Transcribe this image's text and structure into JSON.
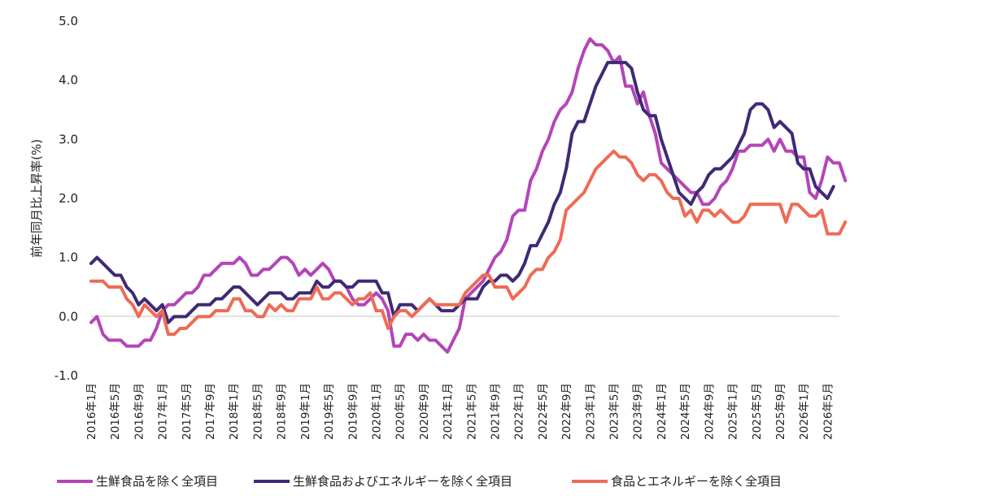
{
  "chart_data": {
    "type": "line",
    "title": "",
    "xlabel": "",
    "ylabel": "前年同月比上昇率(%)",
    "ylim": [
      -1.0,
      5.0
    ],
    "y_ticks": [
      -1.0,
      0.0,
      1.0,
      2.0,
      3.0,
      4.0,
      5.0
    ],
    "y_tick_labels": [
      "-1.0",
      "0.0",
      "1.0",
      "2.0",
      "3.0",
      "4.0",
      "5.0"
    ],
    "x_start": "2016-01",
    "x_end": "2026-07",
    "x_tick_labels": [
      "2016年1月",
      "2016年5月",
      "2016年9月",
      "2017年1月",
      "2017年5月",
      "2017年9月",
      "2018年1月",
      "2018年5月",
      "2018年9月",
      "2019年1月",
      "2019年5月",
      "2019年9月",
      "2020年1月",
      "2020年5月",
      "2020年9月",
      "2021年1月",
      "2021年5月",
      "2021年9月",
      "2022年1月",
      "2022年5月",
      "2022年9月",
      "2023年1月",
      "2023年5月",
      "2023年9月",
      "2024年1月",
      "2024年5月",
      "2024年9月",
      "2025年1月",
      "2025年5月",
      "2025年9月",
      "2026年1月",
      "2026年5月"
    ],
    "grid": false,
    "legend_position": "bottom",
    "series": [
      {
        "name": "生鮮食品を除く全項目",
        "color": "#B445B8",
        "values": [
          -0.1,
          0.0,
          -0.3,
          -0.4,
          -0.4,
          -0.4,
          -0.5,
          -0.5,
          -0.5,
          -0.4,
          -0.4,
          -0.2,
          0.1,
          0.2,
          0.2,
          0.3,
          0.4,
          0.4,
          0.5,
          0.7,
          0.7,
          0.8,
          0.9,
          0.9,
          0.9,
          1.0,
          0.9,
          0.7,
          0.7,
          0.8,
          0.8,
          0.9,
          1.0,
          1.0,
          0.9,
          0.7,
          0.8,
          0.7,
          0.8,
          0.9,
          0.8,
          0.6,
          0.6,
          0.5,
          0.3,
          0.2,
          0.2,
          0.3,
          0.4,
          0.3,
          0.1,
          -0.5,
          -0.5,
          -0.3,
          -0.3,
          -0.4,
          -0.3,
          -0.4,
          -0.4,
          -0.5,
          -0.6,
          -0.4,
          -0.2,
          0.3,
          0.4,
          0.5,
          0.6,
          0.8,
          1.0,
          1.1,
          1.3,
          1.7,
          1.8,
          1.8,
          2.3,
          2.5,
          2.8,
          3.0,
          3.3,
          3.5,
          3.6,
          3.8,
          4.2,
          4.5,
          4.7,
          4.6,
          4.6,
          4.5,
          4.3,
          4.4,
          3.9,
          3.9,
          3.6,
          3.8,
          3.4,
          3.1,
          2.6,
          2.5,
          2.4,
          2.3,
          2.2,
          2.1,
          2.1,
          1.9,
          1.9,
          2.0,
          2.2,
          2.3,
          2.5,
          2.8,
          2.8,
          2.9,
          2.9,
          2.9,
          3.0,
          2.8,
          3.0,
          2.8,
          2.8,
          2.7,
          2.7,
          2.1,
          2.0,
          2.3,
          2.7,
          2.6,
          2.6,
          2.3
        ]
      },
      {
        "name": "生鮮食品およびエネルギーを除く全項目",
        "color": "#3F2A75",
        "values": [
          0.9,
          1.0,
          0.9,
          0.8,
          0.7,
          0.7,
          0.5,
          0.4,
          0.2,
          0.3,
          0.2,
          0.1,
          0.2,
          -0.1,
          0.0,
          0.0,
          0.0,
          0.1,
          0.2,
          0.2,
          0.2,
          0.3,
          0.3,
          0.4,
          0.5,
          0.5,
          0.4,
          0.3,
          0.2,
          0.3,
          0.4,
          0.4,
          0.4,
          0.3,
          0.3,
          0.4,
          0.4,
          0.4,
          0.6,
          0.5,
          0.5,
          0.6,
          0.6,
          0.5,
          0.5,
          0.6,
          0.6,
          0.6,
          0.6,
          0.4,
          0.4,
          0.0,
          0.2,
          0.2,
          0.2,
          0.1,
          0.2,
          0.3,
          0.2,
          0.1,
          0.1,
          0.1,
          0.2,
          0.3,
          0.3,
          0.3,
          0.5,
          0.6,
          0.6,
          0.7,
          0.7,
          0.6,
          0.7,
          0.9,
          1.2,
          1.2,
          1.4,
          1.6,
          1.9,
          2.1,
          2.5,
          3.1,
          3.3,
          3.3,
          3.6,
          3.9,
          4.1,
          4.3,
          4.3,
          4.3,
          4.3,
          4.2,
          3.8,
          3.5,
          3.4,
          3.4,
          3.0,
          2.7,
          2.4,
          2.1,
          2.0,
          1.9,
          2.1,
          2.2,
          2.4,
          2.5,
          2.5,
          2.6,
          2.7,
          2.9,
          3.1,
          3.5,
          3.6,
          3.6,
          3.5,
          3.2,
          3.3,
          3.2,
          3.1,
          2.6,
          2.5,
          2.5,
          2.2,
          2.1,
          2.0,
          2.2
        ]
      },
      {
        "name": "食品とエネルギーを除く全項目",
        "color": "#EE6B55",
        "values": [
          0.6,
          0.6,
          0.6,
          0.5,
          0.5,
          0.5,
          0.3,
          0.2,
          0.0,
          0.2,
          0.1,
          0.0,
          0.1,
          -0.3,
          -0.3,
          -0.2,
          -0.2,
          -0.1,
          0.0,
          0.0,
          0.0,
          0.1,
          0.1,
          0.1,
          0.3,
          0.3,
          0.1,
          0.1,
          0.0,
          0.0,
          0.2,
          0.1,
          0.2,
          0.1,
          0.1,
          0.3,
          0.3,
          0.3,
          0.5,
          0.3,
          0.3,
          0.4,
          0.4,
          0.3,
          0.2,
          0.3,
          0.3,
          0.4,
          0.1,
          0.1,
          -0.2,
          0.0,
          0.1,
          0.1,
          0.0,
          0.1,
          0.2,
          0.3,
          0.2,
          0.2,
          0.2,
          0.2,
          0.2,
          0.4,
          0.5,
          0.6,
          0.7,
          0.7,
          0.5,
          0.5,
          0.5,
          0.3,
          0.4,
          0.5,
          0.7,
          0.8,
          0.8,
          1.0,
          1.1,
          1.3,
          1.8,
          1.9,
          2.0,
          2.1,
          2.3,
          2.5,
          2.6,
          2.7,
          2.8,
          2.7,
          2.7,
          2.6,
          2.4,
          2.3,
          2.4,
          2.4,
          2.3,
          2.1,
          2.0,
          2.0,
          1.7,
          1.8,
          1.6,
          1.8,
          1.8,
          1.7,
          1.8,
          1.7,
          1.6,
          1.6,
          1.7,
          1.9,
          1.9,
          1.9,
          1.9,
          1.9,
          1.9,
          1.6,
          1.9,
          1.9,
          1.8,
          1.7,
          1.7,
          1.8,
          1.4,
          1.4,
          1.4,
          1.6
        ]
      }
    ]
  }
}
